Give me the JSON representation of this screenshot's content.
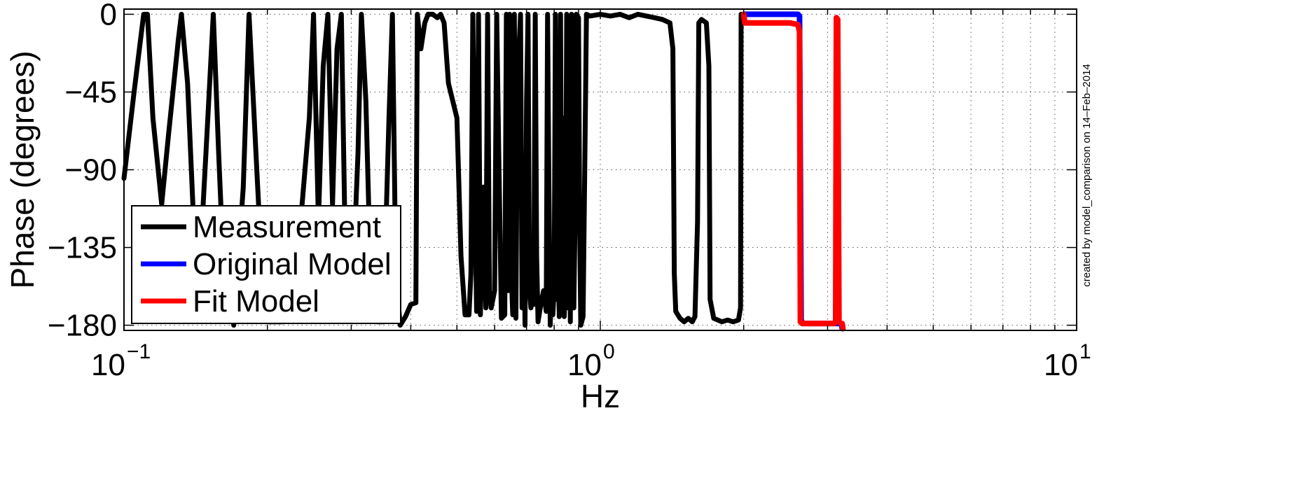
{
  "chart_data": {
    "type": "line",
    "xlabel": "Hz",
    "ylabel": "Phase (degrees)",
    "xscale": "log",
    "xlim": [
      0.1,
      10
    ],
    "ylim": [
      -183,
      3
    ],
    "grid": true,
    "x_ticks": [
      0.1,
      1,
      10
    ],
    "x_tick_labels": [
      {
        "base": "10",
        "exp": "−1"
      },
      {
        "base": "10",
        "exp": "0"
      },
      {
        "base": "10",
        "exp": "1"
      }
    ],
    "y_ticks": [
      0,
      -45,
      -90,
      -135,
      -180
    ],
    "y_tick_labels": [
      "0",
      "−45",
      "−90",
      "−135",
      "−180"
    ],
    "annotation": "created by model_comparison on 14–Feb–2014",
    "legend": {
      "placement": "bottom-left"
    },
    "series": [
      {
        "name": "Measurement",
        "color": "#000000",
        "points": [
          [
            0.1,
            -95
          ],
          [
            0.105,
            -45
          ],
          [
            0.11,
            0
          ],
          [
            0.112,
            0
          ],
          [
            0.115,
            -60
          ],
          [
            0.12,
            -110
          ],
          [
            0.124,
            -70
          ],
          [
            0.13,
            -15
          ],
          [
            0.132,
            0
          ],
          [
            0.136,
            -40
          ],
          [
            0.14,
            -120
          ],
          [
            0.144,
            -150
          ],
          [
            0.15,
            -60
          ],
          [
            0.154,
            0
          ],
          [
            0.158,
            -80
          ],
          [
            0.162,
            -150
          ],
          [
            0.17,
            -180
          ],
          [
            0.178,
            -100
          ],
          [
            0.183,
            0
          ],
          [
            0.19,
            -90
          ],
          [
            0.195,
            -150
          ],
          [
            0.2,
            -178
          ],
          [
            0.215,
            -178
          ],
          [
            0.23,
            -150
          ],
          [
            0.245,
            -60
          ],
          [
            0.25,
            0
          ],
          [
            0.256,
            -120
          ],
          [
            0.262,
            -30
          ],
          [
            0.268,
            0
          ],
          [
            0.274,
            -110
          ],
          [
            0.28,
            -20
          ],
          [
            0.286,
            0
          ],
          [
            0.292,
            -150
          ],
          [
            0.3,
            -178
          ],
          [
            0.31,
            -80
          ],
          [
            0.315,
            0
          ],
          [
            0.322,
            -50
          ],
          [
            0.33,
            -160
          ],
          [
            0.34,
            -178
          ],
          [
            0.35,
            -178
          ],
          [
            0.36,
            -60
          ],
          [
            0.366,
            0
          ],
          [
            0.372,
            -150
          ],
          [
            0.38,
            -180
          ],
          [
            0.39,
            -175
          ],
          [
            0.4,
            -168
          ],
          [
            0.41,
            -167
          ],
          [
            0.413,
            0
          ],
          [
            0.42,
            -20
          ],
          [
            0.428,
            -5
          ],
          [
            0.435,
            0
          ],
          [
            0.445,
            0
          ],
          [
            0.455,
            -2
          ],
          [
            0.462,
            0
          ],
          [
            0.47,
            -5
          ],
          [
            0.48,
            -40
          ],
          [
            0.5,
            -60
          ],
          [
            0.51,
            -140
          ],
          [
            0.52,
            -174
          ],
          [
            0.53,
            -174
          ],
          [
            0.535,
            -150
          ],
          [
            0.54,
            0
          ],
          [
            0.545,
            -100
          ],
          [
            0.55,
            -172
          ],
          [
            0.555,
            0
          ],
          [
            0.56,
            -174
          ],
          [
            0.568,
            -100
          ],
          [
            0.575,
            -170
          ],
          [
            0.58,
            0
          ],
          [
            0.585,
            -160
          ],
          [
            0.59,
            -170
          ],
          [
            0.6,
            -160
          ],
          [
            0.606,
            0
          ],
          [
            0.612,
            -80
          ],
          [
            0.62,
            -176
          ],
          [
            0.63,
            -174
          ],
          [
            0.635,
            0
          ],
          [
            0.64,
            -160
          ],
          [
            0.645,
            0
          ],
          [
            0.65,
            -150
          ],
          [
            0.655,
            -174
          ],
          [
            0.66,
            0
          ],
          [
            0.665,
            -176
          ],
          [
            0.67,
            -40
          ],
          [
            0.68,
            0
          ],
          [
            0.685,
            -170
          ],
          [
            0.69,
            -100
          ],
          [
            0.695,
            -180
          ],
          [
            0.7,
            -50
          ],
          [
            0.705,
            0
          ],
          [
            0.71,
            -160
          ],
          [
            0.715,
            -170
          ],
          [
            0.72,
            -130
          ],
          [
            0.725,
            -168
          ],
          [
            0.73,
            0
          ],
          [
            0.735,
            -140
          ],
          [
            0.74,
            -178
          ],
          [
            0.75,
            -168
          ],
          [
            0.76,
            -160
          ],
          [
            0.77,
            -172
          ],
          [
            0.775,
            0
          ],
          [
            0.78,
            -100
          ],
          [
            0.785,
            -180
          ],
          [
            0.79,
            -150
          ],
          [
            0.795,
            -174
          ],
          [
            0.8,
            -160
          ],
          [
            0.805,
            0
          ],
          [
            0.81,
            -165
          ],
          [
            0.815,
            -140
          ],
          [
            0.82,
            -175
          ],
          [
            0.825,
            0
          ],
          [
            0.83,
            -170
          ],
          [
            0.835,
            -60
          ],
          [
            0.84,
            -175
          ],
          [
            0.845,
            -150
          ],
          [
            0.85,
            0
          ],
          [
            0.855,
            -170
          ],
          [
            0.86,
            -100
          ],
          [
            0.865,
            -178
          ],
          [
            0.87,
            0
          ],
          [
            0.875,
            -160
          ],
          [
            0.88,
            -170
          ],
          [
            0.885,
            -120
          ],
          [
            0.89,
            0
          ],
          [
            0.9,
            -2
          ],
          [
            0.905,
            -120
          ],
          [
            0.91,
            -180
          ],
          [
            0.92,
            -175
          ],
          [
            0.93,
            -60
          ],
          [
            0.935,
            0
          ],
          [
            0.95,
            -1
          ],
          [
            1.0,
            0
          ],
          [
            1.05,
            -1
          ],
          [
            1.1,
            0
          ],
          [
            1.15,
            -2
          ],
          [
            1.2,
            0
          ],
          [
            1.25,
            -1
          ],
          [
            1.3,
            -2
          ],
          [
            1.35,
            -3
          ],
          [
            1.4,
            -5
          ],
          [
            1.42,
            -20
          ],
          [
            1.43,
            -150
          ],
          [
            1.44,
            -172
          ],
          [
            1.47,
            -176
          ],
          [
            1.5,
            -178
          ],
          [
            1.53,
            -176
          ],
          [
            1.56,
            -178
          ],
          [
            1.58,
            -175
          ],
          [
            1.6,
            -120
          ],
          [
            1.61,
            -5
          ],
          [
            1.63,
            -3
          ],
          [
            1.67,
            -5
          ],
          [
            1.69,
            -30
          ],
          [
            1.7,
            -165
          ],
          [
            1.73,
            -176
          ],
          [
            1.8,
            -178
          ],
          [
            1.85,
            -177
          ],
          [
            1.9,
            -178
          ],
          [
            1.95,
            -177
          ],
          [
            1.97,
            -170
          ],
          [
            1.975,
            0
          ]
        ]
      },
      {
        "name": "Original Model",
        "color": "#0000ff",
        "points": [
          [
            2.0,
            0
          ],
          [
            2.6,
            0
          ],
          [
            2.62,
            -1
          ],
          [
            2.64,
            -177
          ],
          [
            2.66,
            -179
          ],
          [
            3.2,
            -179
          ],
          [
            3.21,
            -179
          ],
          [
            3.22,
            -182
          ]
        ]
      },
      {
        "name": "Fit Model",
        "color": "#ff0000",
        "points": [
          [
            2.0,
            0
          ],
          [
            2.01,
            -5
          ],
          [
            2.1,
            -5
          ],
          [
            2.3,
            -5
          ],
          [
            2.5,
            -5
          ],
          [
            2.6,
            -6
          ],
          [
            2.62,
            -10
          ],
          [
            2.63,
            -178
          ],
          [
            2.65,
            -179
          ],
          [
            3.1,
            -179
          ],
          [
            3.12,
            -178
          ],
          [
            3.13,
            -2
          ],
          [
            3.15,
            -3
          ],
          [
            3.17,
            -178
          ],
          [
            3.2,
            -179
          ],
          [
            3.22,
            -179
          ],
          [
            3.23,
            -182
          ]
        ]
      }
    ]
  }
}
